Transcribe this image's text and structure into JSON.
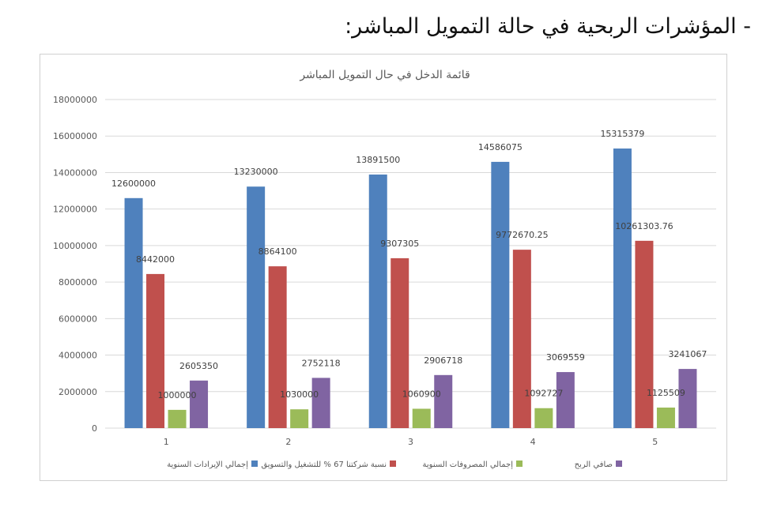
{
  "page": {
    "heading": "- المؤشرات الربحية في حالة التمويل المباشر:"
  },
  "chart_data": {
    "type": "bar",
    "title": "قائمة الدخل في حال التمويل المباشر",
    "categories": [
      "1",
      "2",
      "3",
      "4",
      "5"
    ],
    "ylim": [
      0,
      18000000
    ],
    "yticks": [
      "0",
      "2000000",
      "4000000",
      "6000000",
      "8000000",
      "10000000",
      "12000000",
      "14000000",
      "16000000",
      "18000000"
    ],
    "grid": true,
    "legend_position": "bottom",
    "series": [
      {
        "name": "إجمالي الإيرادات السنوية",
        "color": "#4f81bd",
        "values": [
          12600000,
          13230000,
          13891500,
          14586075,
          15315379
        ],
        "labels": [
          "12600000",
          "13230000",
          "13891500",
          "14586075",
          "15315379"
        ]
      },
      {
        "name": "نسبة شركتنا 67 % للتشغيل والتسويق",
        "color": "#c0504d",
        "values": [
          8442000,
          8864100,
          9307305,
          9772670.25,
          10261303.76
        ],
        "labels": [
          "8442000",
          "8864100",
          "9307305",
          "9772670.25",
          "10261303.76"
        ]
      },
      {
        "name": "إجمالي المصروفات السنوية",
        "color": "#9bbb59",
        "values": [
          1000000,
          1030000,
          1060900,
          1092727,
          1125509
        ],
        "labels": [
          "1000000",
          "1030000",
          "1060900",
          "1092727",
          "1125509"
        ]
      },
      {
        "name": "صافي الربح",
        "color": "#8064a2",
        "values": [
          2605350,
          2752118,
          2906718,
          3069559,
          3241067
        ],
        "labels": [
          "2605350",
          "2752118",
          "2906718",
          "3069559",
          "3241067"
        ]
      }
    ]
  }
}
